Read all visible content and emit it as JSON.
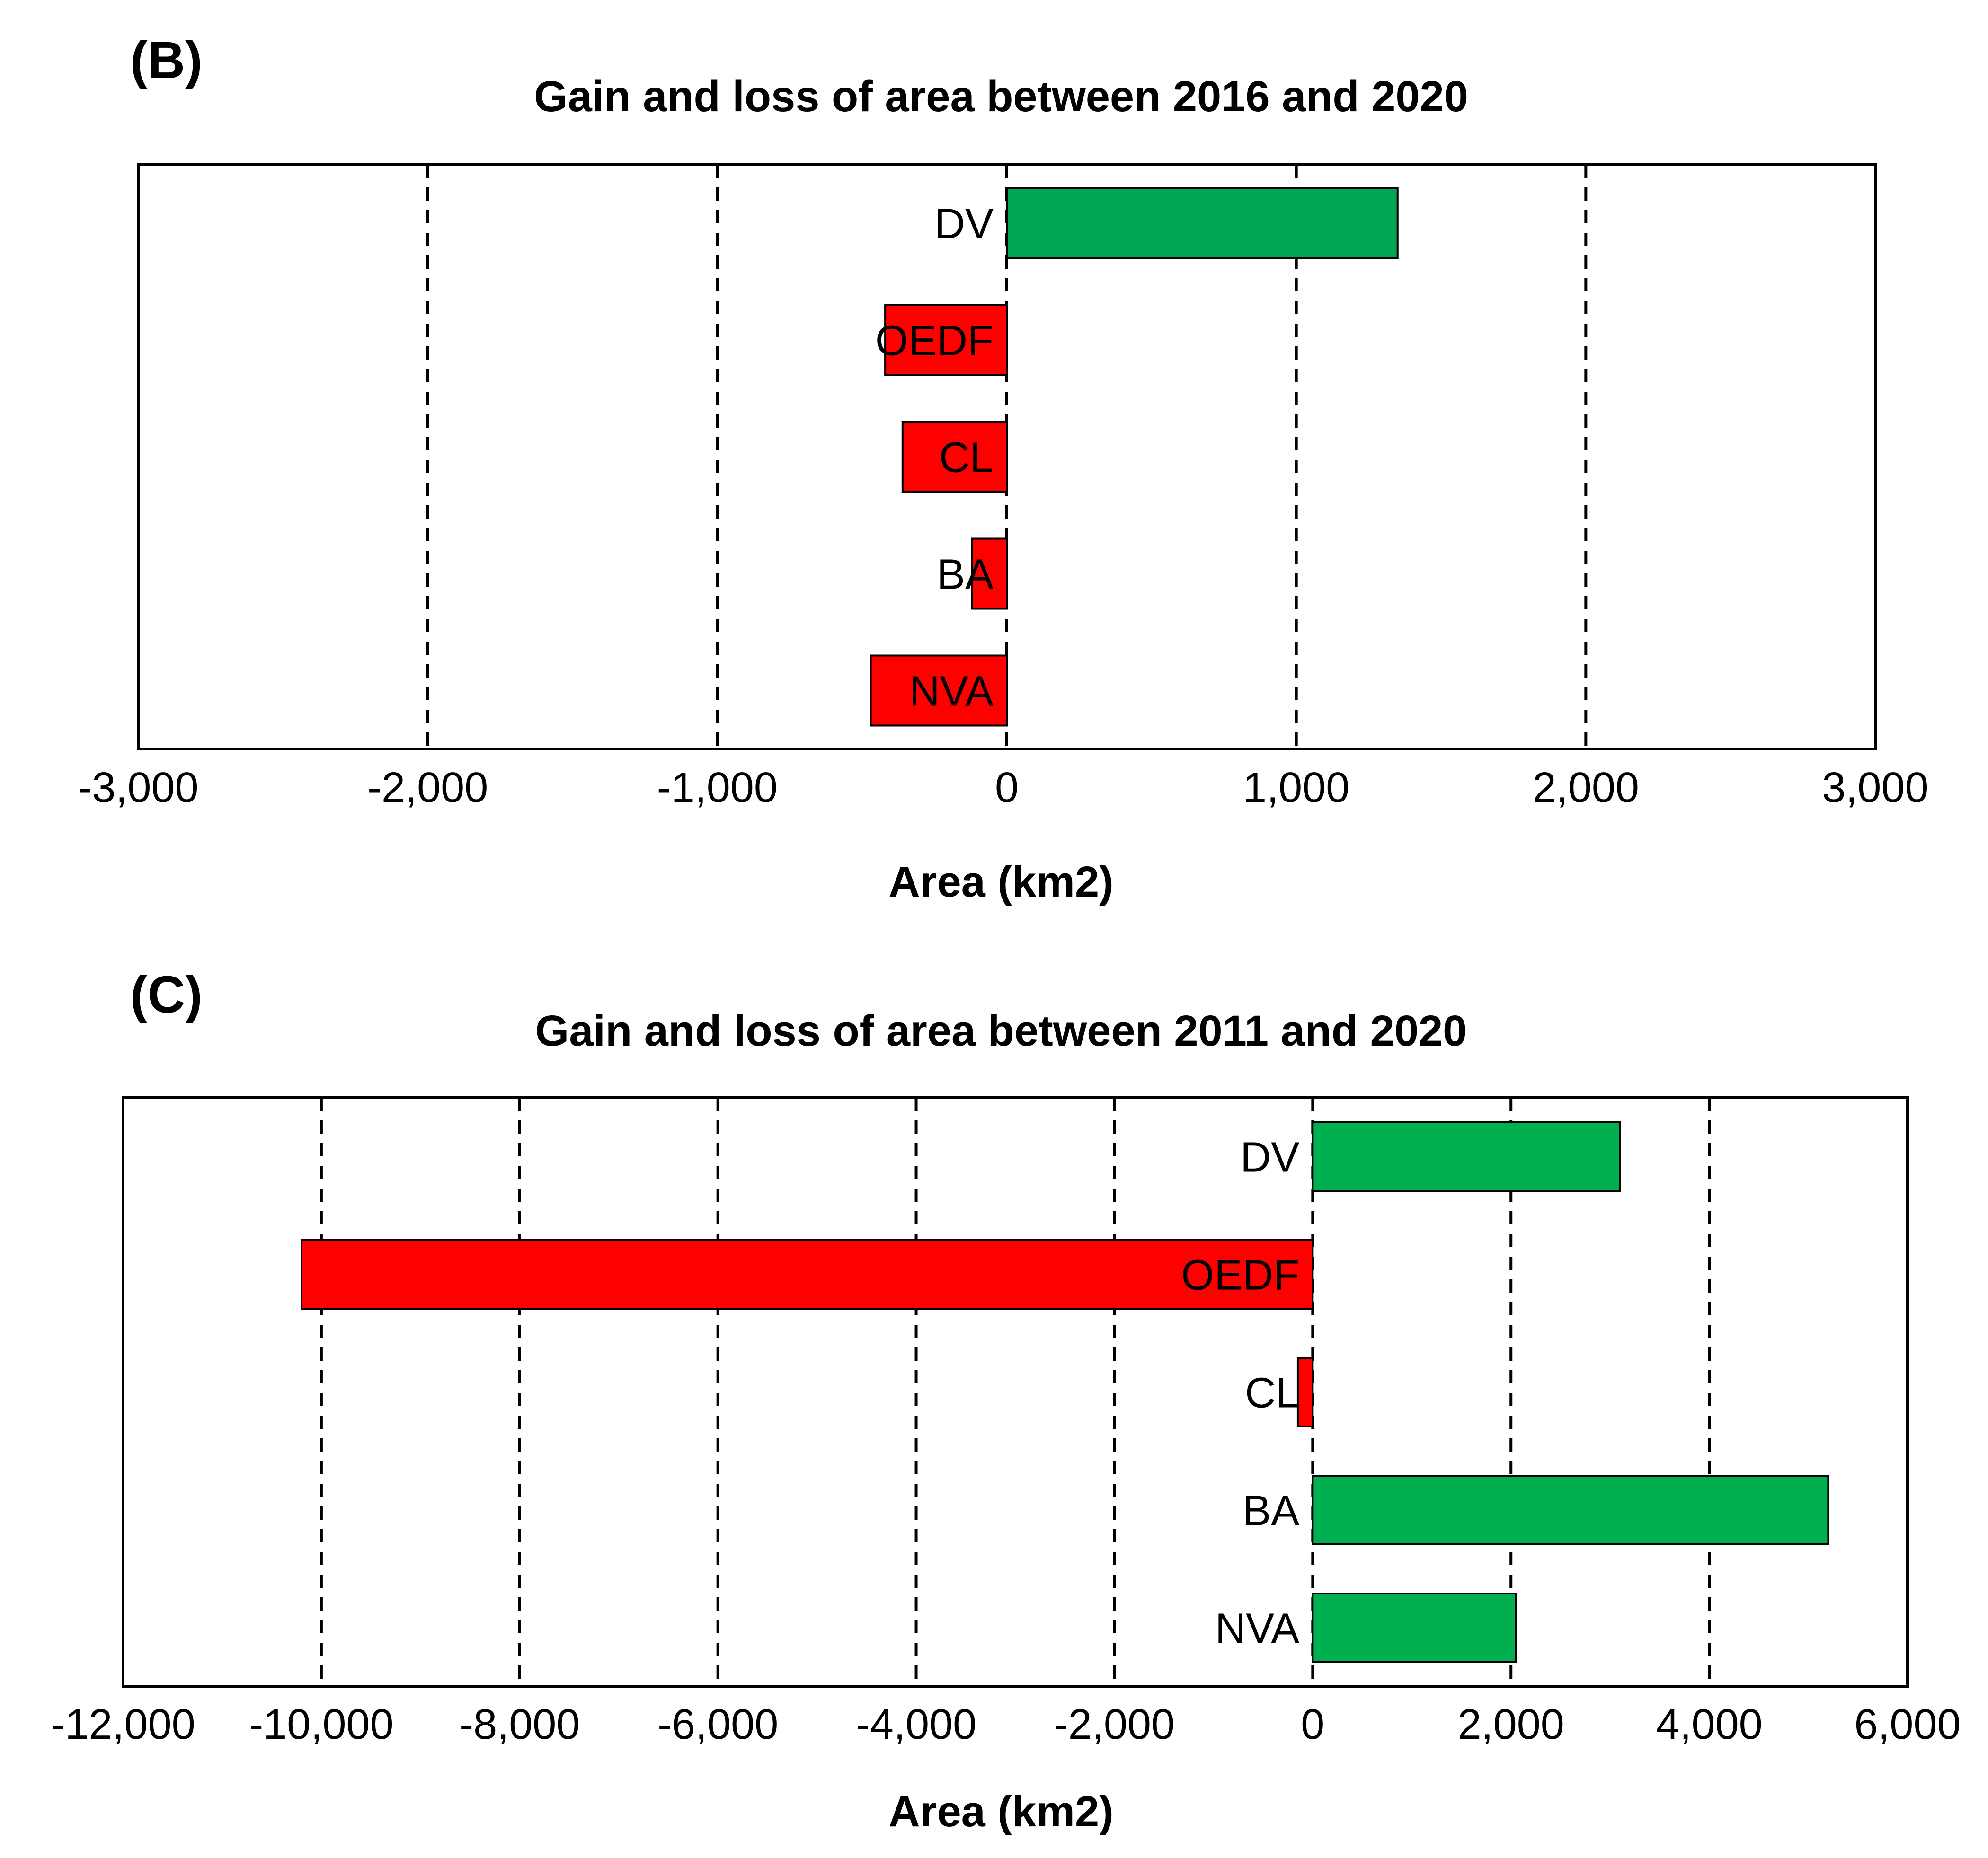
{
  "chart_data": [
    {
      "type": "bar",
      "orientation": "horizontal",
      "panel": "(B)",
      "title": "Gain and loss of area between 2016 and 2020",
      "xlabel": "Area (km2)",
      "ylabel": "",
      "xlim": [
        -3000,
        3000
      ],
      "ticks": [
        -3000,
        -2000,
        -1000,
        0,
        1000,
        2000,
        3000
      ],
      "tick_labels": [
        "-3,000",
        "-2,000",
        "-1,000",
        "0",
        "1,000",
        "2,000",
        "3,000"
      ],
      "grid": "vertical dashed",
      "categories": [
        "DV",
        "OEDF",
        "CL",
        "BA",
        "NVA"
      ],
      "values": [
        1350,
        -420,
        -360,
        -120,
        -470
      ],
      "colors": {
        "gain": "#00a651",
        "loss": "#ff0000"
      }
    },
    {
      "type": "bar",
      "orientation": "horizontal",
      "panel": "(C)",
      "title": "Gain and loss of area between 2011 and 2020",
      "xlabel": "Area (km2)",
      "ylabel": "",
      "xlim": [
        -12000,
        6000
      ],
      "ticks": [
        -12000,
        -10000,
        -8000,
        -6000,
        -4000,
        -2000,
        0,
        2000,
        4000,
        6000
      ],
      "tick_labels": [
        "-12,000",
        "-10,000",
        "-8,000",
        "-6,000",
        "-4,000",
        "-2,000",
        "0",
        "2,000",
        "4,000",
        "6,000"
      ],
      "grid": "vertical dashed",
      "categories": [
        "DV",
        "OEDF",
        "CL",
        "BA",
        "NVA"
      ],
      "values": [
        3100,
        -10200,
        -150,
        5200,
        2050
      ],
      "colors": {
        "gain": "#00b050",
        "loss": "#ff0000"
      }
    }
  ]
}
